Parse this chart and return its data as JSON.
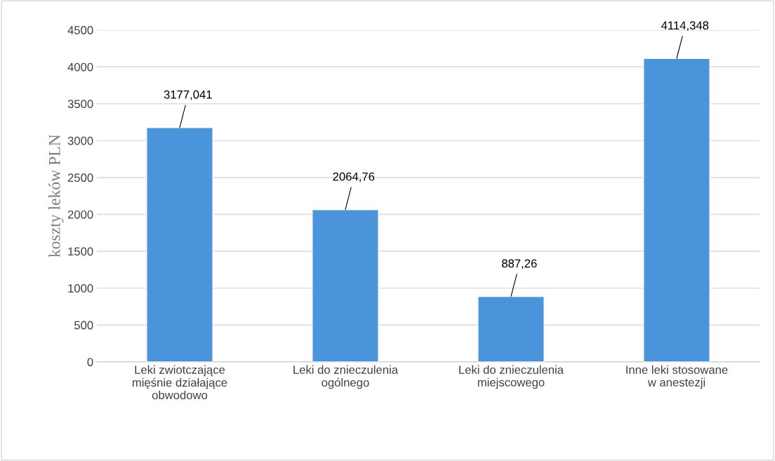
{
  "chart_data": {
    "type": "bar",
    "ylabel": "koszty leków PLN",
    "categories": [
      "Leki zwiotczające\nmięśnie działające\nobwodowo",
      "Leki do znieczulenia\nogólnego",
      "Leki do znieczulenia\nmiejscowego",
      "Inne leki stosowane\nw anestezji"
    ],
    "values": [
      3177.041,
      2064.76,
      887.26,
      4114.348
    ],
    "value_labels": [
      "3177,041",
      "2064,76",
      "887,26",
      "4114,348"
    ],
    "color": "#4a94dc",
    "ylim": [
      0,
      4500
    ],
    "yticks": [
      0,
      500,
      1000,
      1500,
      2000,
      2500,
      3000,
      3500,
      4000,
      4500
    ],
    "grid": "y"
  }
}
